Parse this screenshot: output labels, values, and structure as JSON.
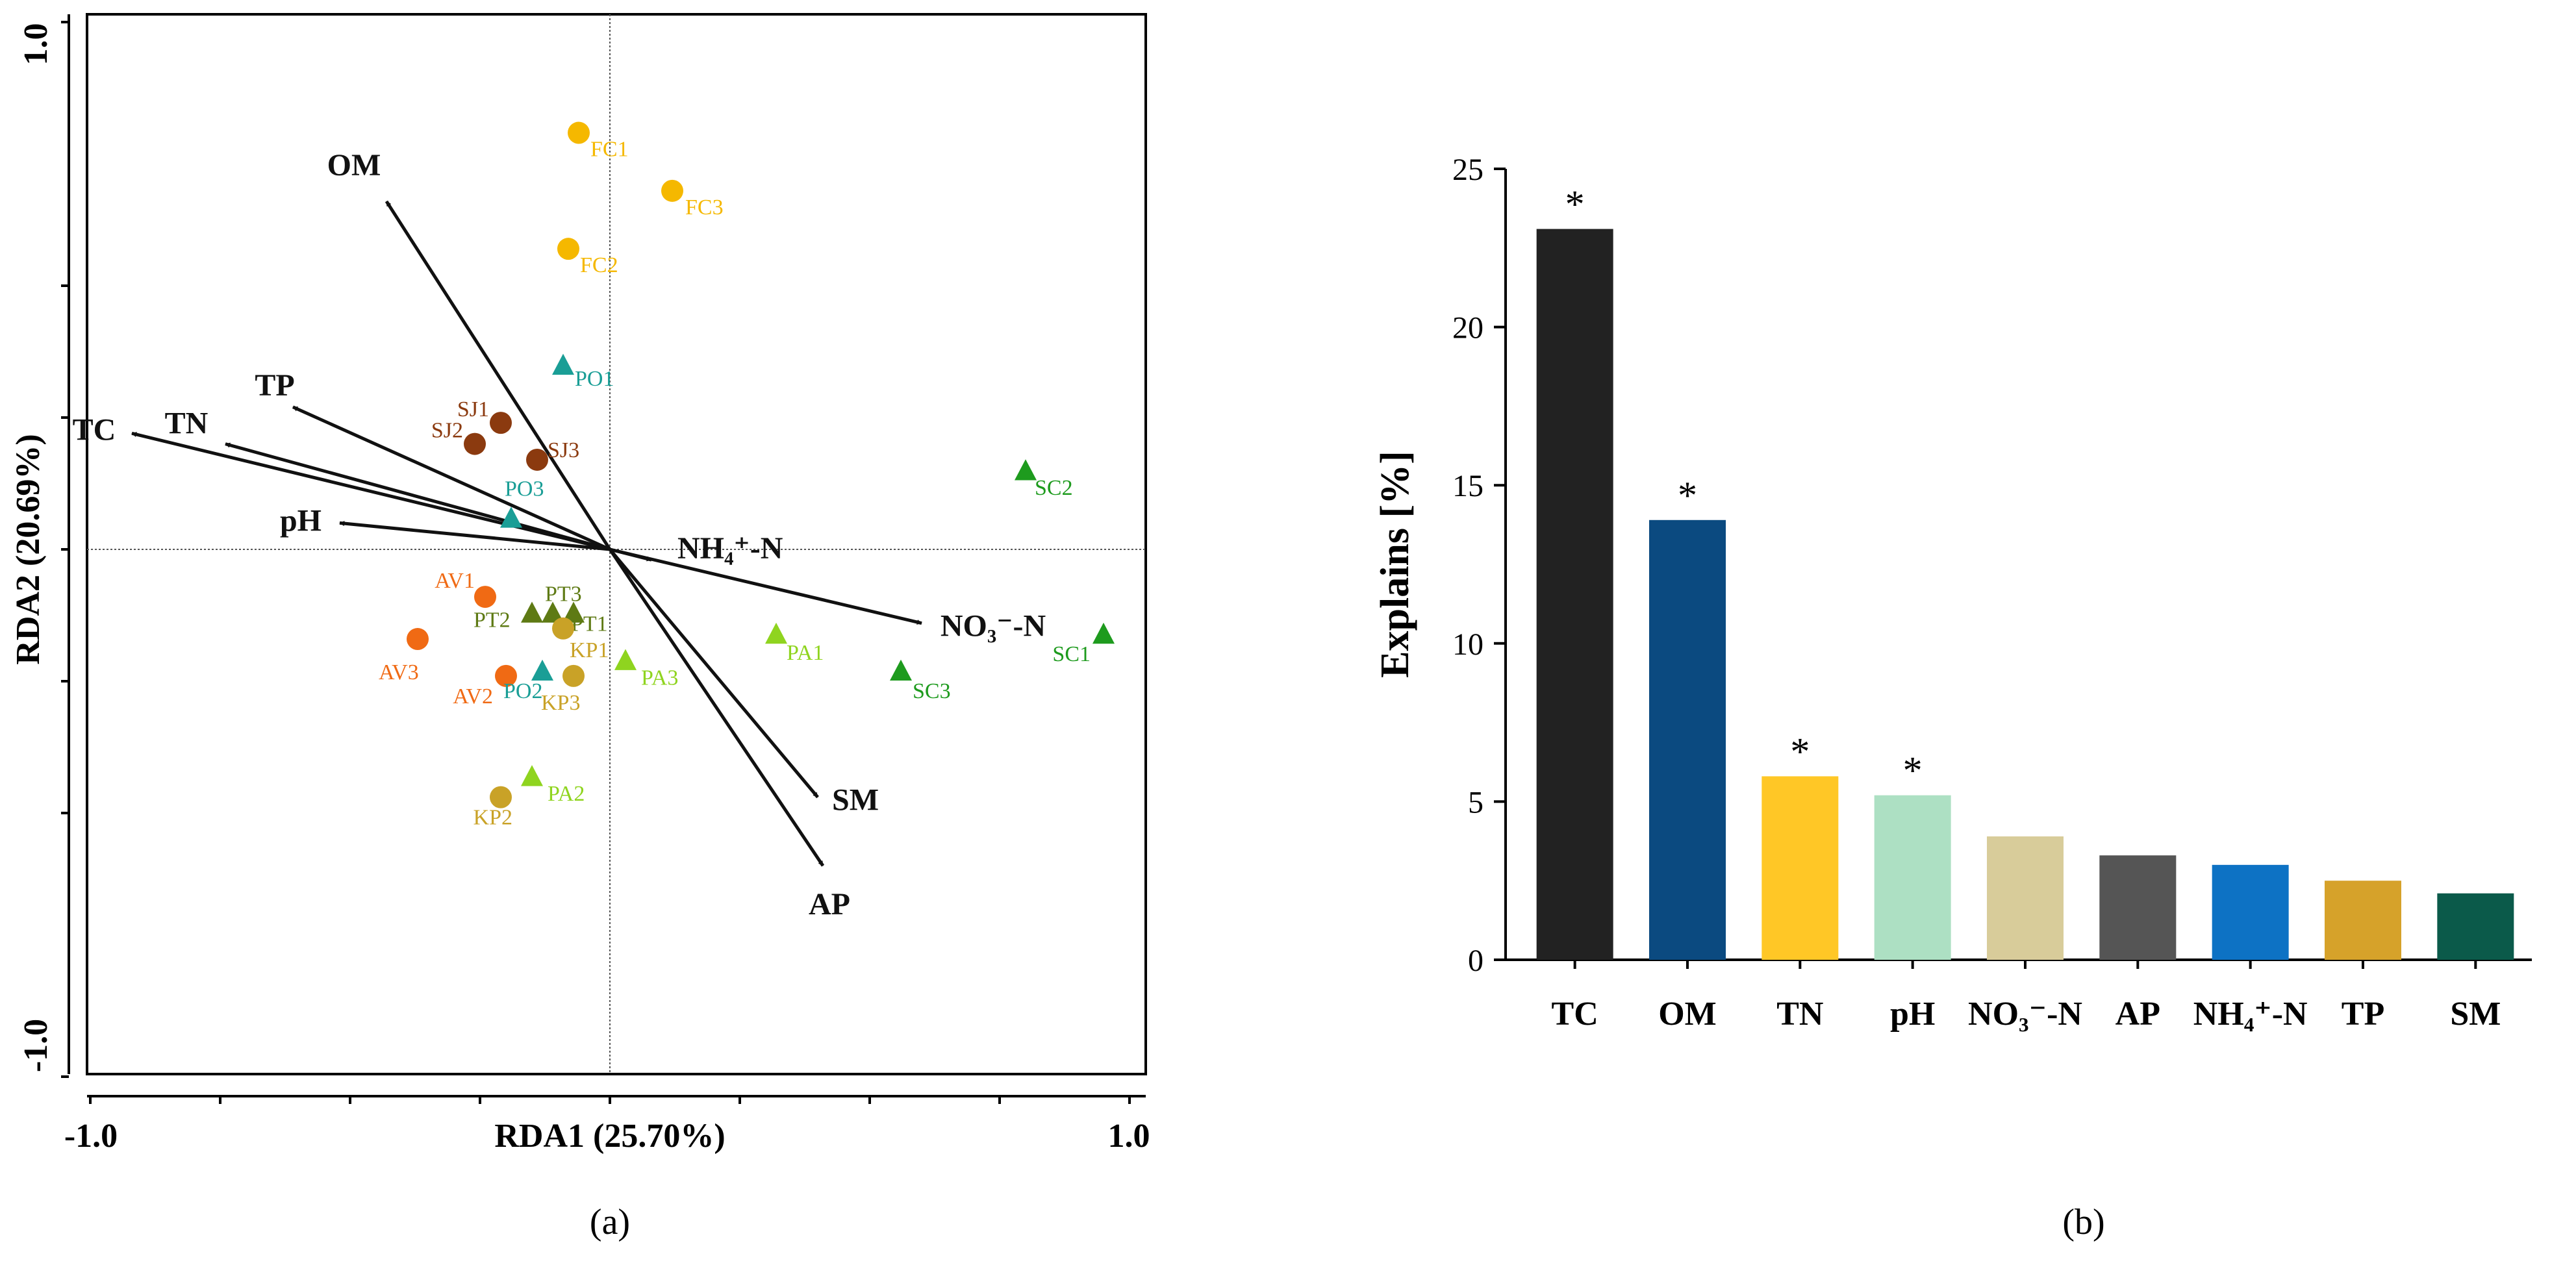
{
  "chart_data": [
    {
      "type": "scatter",
      "panel_label": "(a)",
      "xlabel": "RDA1 (25.70%)",
      "ylabel": "RDA2 (20.69%)",
      "xlim": [
        -1.0,
        1.0
      ],
      "ylim": [
        -1.0,
        1.0
      ],
      "x_tick_labels": [
        "-1.0",
        "1.0"
      ],
      "y_tick_labels": [
        "1.0",
        "-1.0"
      ],
      "vectors": [
        {
          "name": "OM",
          "x": -0.43,
          "y": 0.66
        },
        {
          "name": "TP",
          "x": -0.61,
          "y": 0.27
        },
        {
          "name": "TN",
          "x": -0.74,
          "y": 0.2
        },
        {
          "name": "TC",
          "x": -0.92,
          "y": 0.22
        },
        {
          "name": "pH",
          "x": -0.52,
          "y": 0.05
        },
        {
          "name": "NH₄⁺-N",
          "x": 0.08,
          "y": -0.02
        },
        {
          "name": "NO₃⁻-N",
          "x": 0.6,
          "y": -0.14
        },
        {
          "name": "SM",
          "x": 0.4,
          "y": -0.47
        },
        {
          "name": "AP",
          "x": 0.41,
          "y": -0.6
        }
      ],
      "points": [
        {
          "label": "FC1",
          "x": -0.06,
          "y": 0.79,
          "shape": "circle",
          "color": "#F5B800"
        },
        {
          "label": "FC3",
          "x": 0.12,
          "y": 0.68,
          "shape": "circle",
          "color": "#F5B800"
        },
        {
          "label": "FC2",
          "x": -0.08,
          "y": 0.57,
          "shape": "circle",
          "color": "#F5B800"
        },
        {
          "label": "PO1",
          "x": -0.09,
          "y": 0.35,
          "shape": "triangle",
          "color": "#1A9E96"
        },
        {
          "label": "SJ1",
          "x": -0.21,
          "y": 0.24,
          "shape": "circle",
          "color": "#8B3A0F"
        },
        {
          "label": "SJ2",
          "x": -0.26,
          "y": 0.2,
          "shape": "circle",
          "color": "#8B3A0F"
        },
        {
          "label": "SJ3",
          "x": -0.14,
          "y": 0.17,
          "shape": "circle",
          "color": "#8B3A0F"
        },
        {
          "label": "PO3",
          "x": -0.19,
          "y": 0.06,
          "shape": "triangle",
          "color": "#1A9E96"
        },
        {
          "label": "SC2",
          "x": 0.8,
          "y": 0.15,
          "shape": "triangle",
          "color": "#1E9B1E"
        },
        {
          "label": "SC1",
          "x": 0.95,
          "y": -0.16,
          "shape": "triangle",
          "color": "#1E9B1E"
        },
        {
          "label": "SC3",
          "x": 0.56,
          "y": -0.23,
          "shape": "triangle",
          "color": "#1E9B1E"
        },
        {
          "label": "AV1",
          "x": -0.24,
          "y": -0.09,
          "shape": "circle",
          "color": "#F06A14"
        },
        {
          "label": "AV3",
          "x": -0.37,
          "y": -0.17,
          "shape": "circle",
          "color": "#F06A14"
        },
        {
          "label": "AV2",
          "x": -0.2,
          "y": -0.24,
          "shape": "circle",
          "color": "#F06A14"
        },
        {
          "label": "PT3",
          "x": -0.11,
          "y": -0.12,
          "shape": "triangle",
          "color": "#5E7A14"
        },
        {
          "label": "PT2",
          "x": -0.15,
          "y": -0.12,
          "shape": "triangle",
          "color": "#5E7A14"
        },
        {
          "label": "PT1",
          "x": -0.07,
          "y": -0.12,
          "shape": "triangle",
          "color": "#5E7A14"
        },
        {
          "label": "KP1",
          "x": -0.09,
          "y": -0.15,
          "shape": "circle",
          "color": "#C9A227"
        },
        {
          "label": "KP3",
          "x": -0.07,
          "y": -0.24,
          "shape": "circle",
          "color": "#C9A227"
        },
        {
          "label": "KP2",
          "x": -0.21,
          "y": -0.47,
          "shape": "circle",
          "color": "#C9A227"
        },
        {
          "label": "PO2",
          "x": -0.13,
          "y": -0.23,
          "shape": "triangle",
          "color": "#1A9E96"
        },
        {
          "label": "PA1",
          "x": 0.32,
          "y": -0.16,
          "shape": "triangle",
          "color": "#8FD41F"
        },
        {
          "label": "PA3",
          "x": 0.03,
          "y": -0.21,
          "shape": "triangle",
          "color": "#8FD41F"
        },
        {
          "label": "PA2",
          "x": -0.15,
          "y": -0.43,
          "shape": "triangle",
          "color": "#8FD41F"
        }
      ]
    },
    {
      "type": "bar",
      "panel_label": "(b)",
      "ylabel": "Explains [%]",
      "xlabel": "",
      "ylim": [
        0,
        25
      ],
      "y_ticks": [
        0,
        5,
        10,
        15,
        20,
        25
      ],
      "categories": [
        "TC",
        "OM",
        "TN",
        "pH",
        "NO₃⁻-N",
        "AP",
        "NH₄⁺-N",
        "TP",
        "SM"
      ],
      "values": [
        23.1,
        13.9,
        5.8,
        5.2,
        3.9,
        3.3,
        3.0,
        2.5,
        2.1
      ],
      "significant": [
        "*",
        "*",
        "*",
        "*",
        "",
        "",
        "",
        "",
        ""
      ],
      "colors": [
        "#222222",
        "#0B4A80",
        "#FFC726",
        "#ADE0C3",
        "#D8CC9A",
        "#555555",
        "#0D72C4",
        "#D6A22A",
        "#0B5A4A"
      ]
    }
  ]
}
